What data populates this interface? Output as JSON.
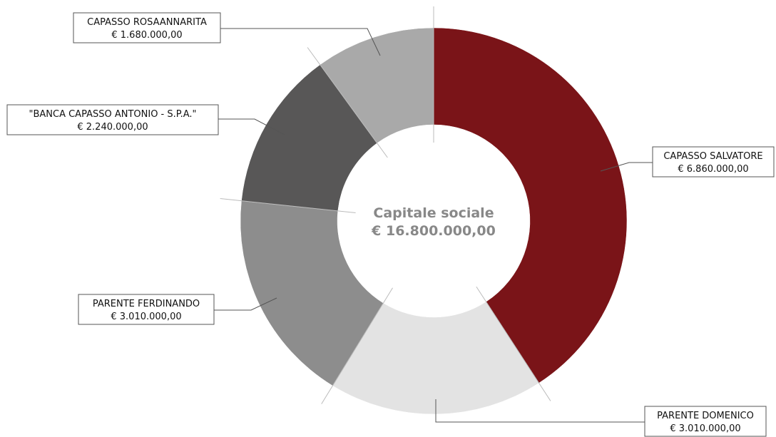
{
  "chart_data": {
    "type": "pie",
    "center_title": "Capitale sociale",
    "center_value": "€ 16.800.000,00",
    "total": 16800000,
    "slices": [
      {
        "name": "CAPASSO SALVATORE",
        "value": 6860000,
        "value_label": "€ 6.860.000,00",
        "color": "#7a1418"
      },
      {
        "name": "PARENTE DOMENICO",
        "value": 3010000,
        "value_label": "€ 3.010.000,00",
        "color": "#e3e3e3"
      },
      {
        "name": "PARENTE FERDINANDO",
        "value": 3010000,
        "value_label": "€ 3.010.000,00",
        "color": "#8d8d8d"
      },
      {
        "name": "\"BANCA CAPASSO ANTONIO - S.P.A.\"",
        "value": 2240000,
        "value_label": "€ 2.240.000,00",
        "color": "#585757"
      },
      {
        "name": "CAPASSO ROSAANNARITA",
        "value": 1680000,
        "value_label": "€ 1.680.000,00",
        "color": "#a9a9a9"
      }
    ]
  }
}
